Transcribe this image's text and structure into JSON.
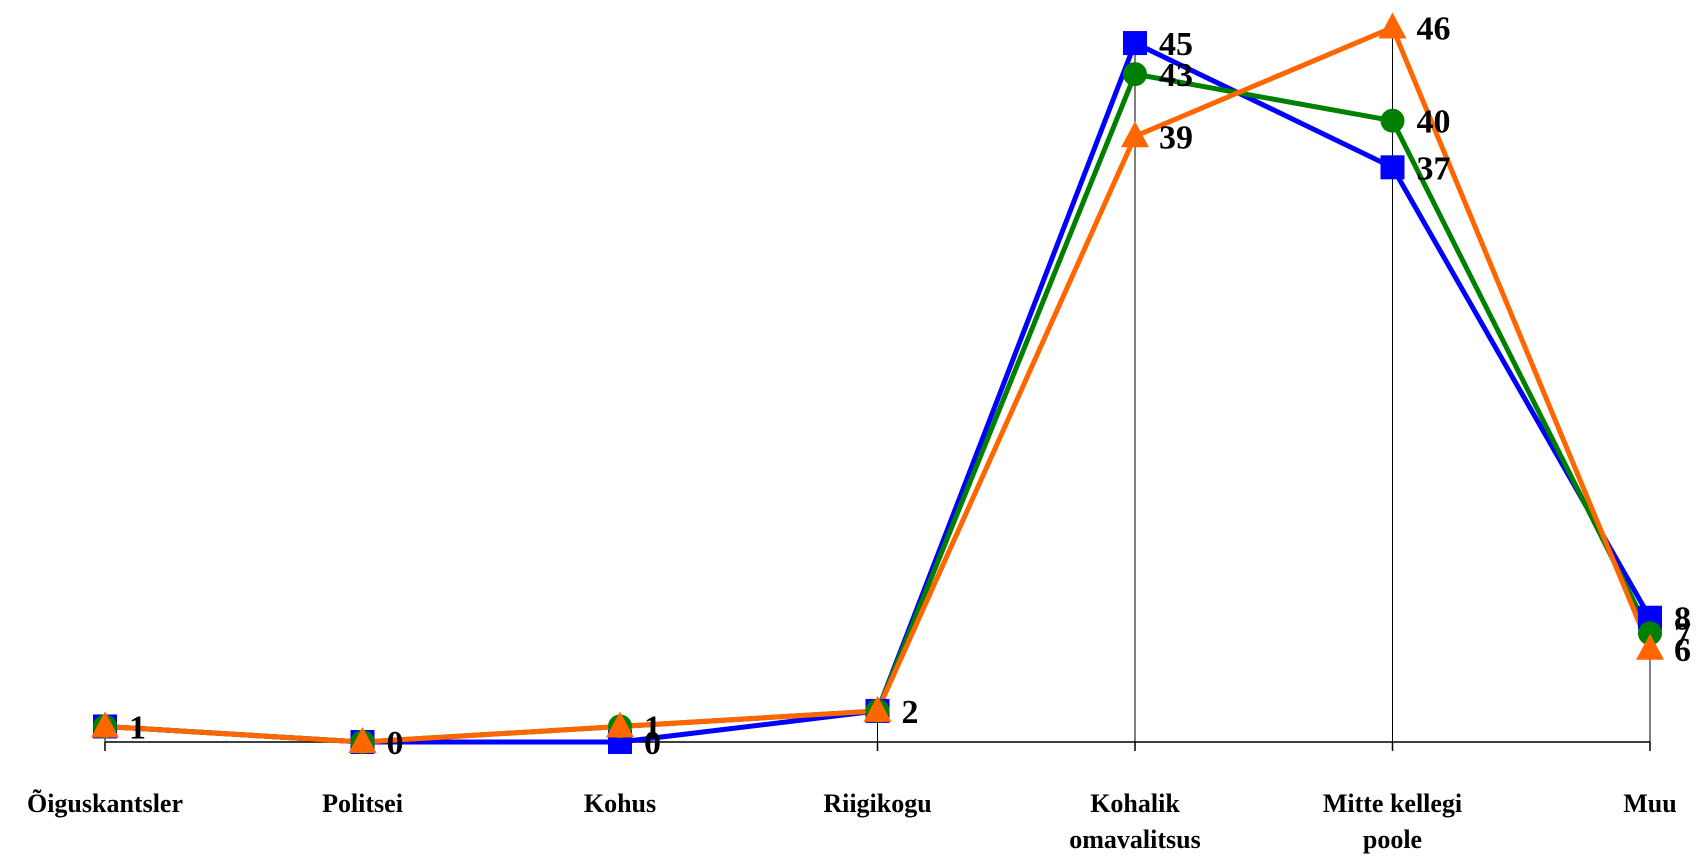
{
  "chart_data": {
    "type": "line",
    "title": "",
    "xlabel": "",
    "ylabel": "",
    "categories": [
      [
        "Õiguskantsler"
      ],
      [
        "Politsei"
      ],
      [
        "Kohus"
      ],
      [
        "Riigikogu"
      ],
      [
        "Kohalik",
        "omavalitsus"
      ],
      [
        "Mitte kellegi",
        "poole"
      ],
      [
        "Muu"
      ]
    ],
    "ylim": [
      0,
      47
    ],
    "grid": false,
    "legend": "none",
    "series": [
      {
        "color": "#0000ff",
        "marker": "square",
        "values": [
          1,
          0,
          0,
          2,
          45,
          37,
          8
        ]
      },
      {
        "color": "#008000",
        "marker": "circle",
        "values": [
          1,
          0,
          1,
          2,
          43,
          40,
          7
        ]
      },
      {
        "color": "#ff6600",
        "marker": "triangle",
        "values": [
          1,
          0,
          1,
          2,
          39,
          46,
          6
        ]
      }
    ],
    "data_labels": [
      {
        "series": 0,
        "index": 0,
        "text": "1"
      },
      {
        "series": 0,
        "index": 1,
        "text": "0"
      },
      {
        "series": 0,
        "index": 2,
        "text": "0"
      },
      {
        "series": 0,
        "index": 3,
        "text": "2"
      },
      {
        "series": 0,
        "index": 4,
        "text": "45"
      },
      {
        "series": 0,
        "index": 5,
        "text": "37"
      },
      {
        "series": 0,
        "index": 6,
        "text": "8"
      },
      {
        "series": 1,
        "index": 4,
        "text": "43"
      },
      {
        "series": 1,
        "index": 5,
        "text": "40"
      },
      {
        "series": 1,
        "index": 6,
        "text": "7"
      },
      {
        "series": 2,
        "index": 2,
        "text": "1"
      },
      {
        "series": 2,
        "index": 4,
        "text": "39"
      },
      {
        "series": 2,
        "index": 5,
        "text": "46"
      },
      {
        "series": 2,
        "index": 6,
        "text": "6"
      }
    ]
  }
}
